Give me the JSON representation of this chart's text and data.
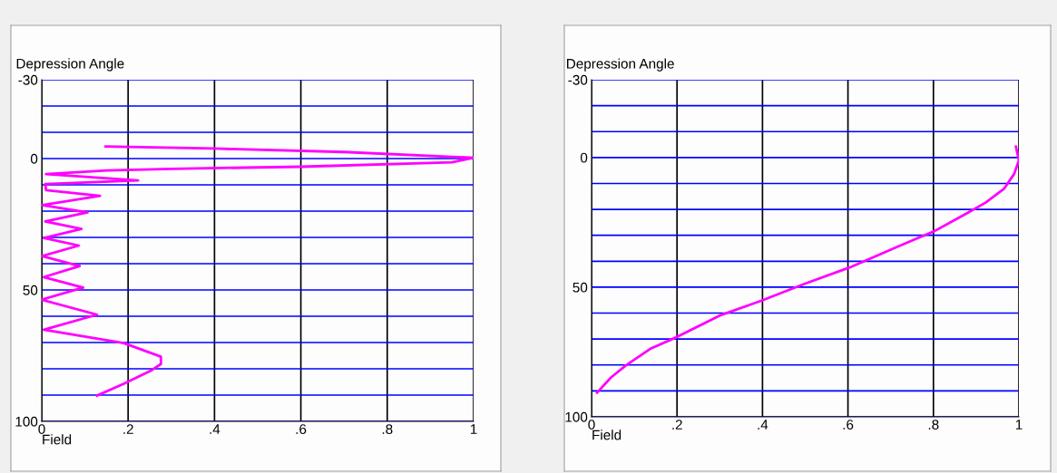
{
  "chart_data": [
    {
      "type": "line",
      "xlabel": "Field",
      "ylabel": "Depression Angle",
      "xlim": [
        0,
        1
      ],
      "ylim": [
        100,
        -30
      ],
      "xticks": [
        0,
        {
          "value": 0.2,
          "label": ".2"
        },
        {
          "value": 0.4,
          "label": ".4"
        },
        {
          "value": 0.6,
          "label": ".6"
        },
        {
          "value": 0.8,
          "label": ".8"
        },
        1
      ],
      "yticks": [
        -30,
        {
          "value": -20,
          "label": null
        },
        {
          "value": -10,
          "label": null
        },
        0,
        {
          "value": 10,
          "label": null
        },
        {
          "value": 20,
          "label": null
        },
        {
          "value": 30,
          "label": null
        },
        {
          "value": 40,
          "label": null
        },
        50,
        {
          "value": 60,
          "label": null
        },
        {
          "value": 70,
          "label": null
        },
        {
          "value": 80,
          "label": null
        },
        {
          "value": 90,
          "label": null
        },
        100
      ],
      "grid": true,
      "series": [
        {
          "color": "#ff00ff",
          "x": [
            0.148,
            0.4,
            0.7,
            1.0,
            0.95,
            0.6,
            0.3,
            0.15,
            0.01,
            0.223,
            0.008,
            0.01,
            0.135,
            0.001,
            0.106,
            0.008,
            0.092,
            0.005,
            0.086,
            0.0,
            0.088,
            0.005,
            0.096,
            0.0,
            0.128,
            0.005,
            0.19,
            0.276,
            0.276,
            0.255,
            0.19,
            0.128
          ],
          "values": [
            -4.6,
            -3.8,
            -2.5,
            -0.3,
            1.4,
            3.1,
            3.9,
            4.5,
            5.9,
            8.3,
            9.7,
            12.0,
            14.2,
            17.7,
            20.5,
            23.9,
            26.8,
            30.2,
            33.1,
            37.1,
            40.9,
            45.1,
            49.1,
            53.7,
            59.4,
            65.1,
            70.2,
            75.4,
            78.2,
            80.5,
            85.7,
            90.2
          ]
        }
      ]
    },
    {
      "type": "line",
      "xlabel": "Field",
      "ylabel": "Depression Angle",
      "xlim": [
        0,
        1
      ],
      "ylim": [
        100,
        -30
      ],
      "xticks": [
        0,
        {
          "value": 0.2,
          "label": ".2"
        },
        {
          "value": 0.4,
          "label": ".4"
        },
        {
          "value": 0.6,
          "label": ".6"
        },
        {
          "value": 0.8,
          "label": ".8"
        },
        1
      ],
      "yticks": [
        -30,
        {
          "value": -20,
          "label": null
        },
        {
          "value": -10,
          "label": null
        },
        0,
        {
          "value": 10,
          "label": null
        },
        {
          "value": 20,
          "label": null
        },
        {
          "value": 30,
          "label": null
        },
        {
          "value": 40,
          "label": null
        },
        50,
        {
          "value": 60,
          "label": null
        },
        {
          "value": 70,
          "label": null
        },
        {
          "value": 80,
          "label": null
        },
        {
          "value": 90,
          "label": null
        },
        100
      ],
      "grid": true,
      "series": [
        {
          "color": "#ff00ff",
          "x": [
            0.993,
            1.0,
            0.989,
            0.965,
            0.922,
            0.873,
            0.802,
            0.71,
            0.604,
            0.497,
            0.398,
            0.299,
            0.2,
            0.137,
            0.08,
            0.045,
            0.013
          ],
          "values": [
            -4.2,
            1.1,
            6.3,
            12.1,
            17.4,
            22.0,
            28.4,
            34.8,
            42.4,
            48.8,
            55.2,
            61.0,
            69.2,
            73.8,
            80.2,
            84.9,
            90.7
          ]
        }
      ]
    }
  ]
}
